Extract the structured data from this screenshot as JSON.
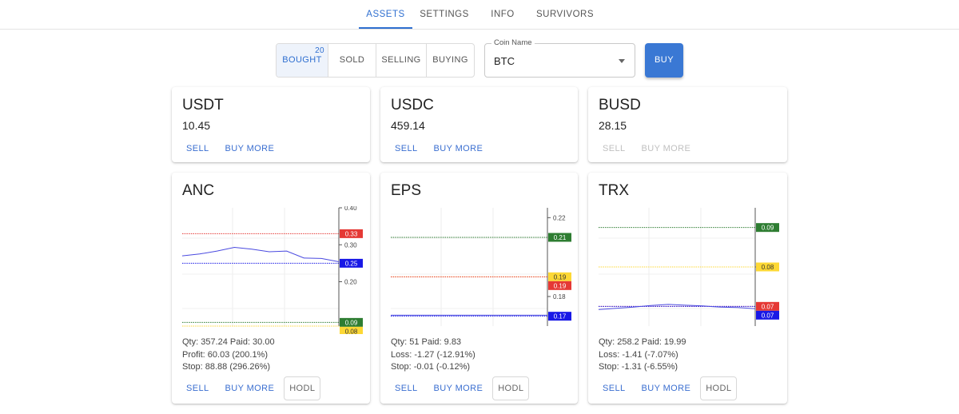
{
  "nav": {
    "tabs": [
      {
        "label": "ASSETS",
        "active": true
      },
      {
        "label": "SETTINGS",
        "active": false
      },
      {
        "label": "INFO",
        "active": false
      },
      {
        "label": "SURVIVORS",
        "active": false
      }
    ]
  },
  "filter": {
    "segments": [
      {
        "label": "BOUGHT",
        "badge": "20",
        "active": true
      },
      {
        "label": "SOLD",
        "active": false
      },
      {
        "label": "SELLING",
        "active": false
      },
      {
        "label": "BUYING",
        "active": false
      }
    ],
    "coin_label": "Coin Name",
    "coin_value": "BTC",
    "buy_label": "BUY"
  },
  "cards": {
    "usdt": {
      "title": "USDT",
      "value": "10.45",
      "sell": "SELL",
      "buy_more": "BUY MORE"
    },
    "usdc": {
      "title": "USDC",
      "value": "459.14",
      "sell": "SELL",
      "buy_more": "BUY MORE"
    },
    "busd": {
      "title": "BUSD",
      "value": "28.15",
      "sell": "SELL",
      "buy_more": "BUY MORE"
    },
    "anc": {
      "title": "ANC",
      "qty_line": "Qty: 357.24 Paid: 30.00",
      "pl_line": "Profit: 60.03 (200.1%)",
      "stop_line": "Stop: 88.88 (296.26%)",
      "sell": "SELL",
      "buy_more": "BUY MORE",
      "hodl": "HODL"
    },
    "eps": {
      "title": "EPS",
      "qty_line": "Qty: 51 Paid: 9.83",
      "pl_line": "Loss: -1.27 (-12.91%)",
      "stop_line": "Stop: -0.01 (-0.12%)",
      "sell": "SELL",
      "buy_more": "BUY MORE",
      "hodl": "HODL"
    },
    "trx": {
      "title": "TRX",
      "qty_line": "Qty: 258.2 Paid: 19.99",
      "pl_line": "Loss: -1.41 (-7.07%)",
      "stop_line": "Stop: -1.31 (-6.55%)",
      "sell": "SELL",
      "buy_more": "BUY MORE",
      "hodl": "HODL"
    }
  },
  "chart_data": [
    {
      "type": "line",
      "title": "ANC",
      "ylim": [
        0.08,
        0.4
      ],
      "ticks": [
        {
          "v": 0.4,
          "label": "0.40"
        },
        {
          "v": 0.3,
          "label": "0.30"
        },
        {
          "v": 0.2,
          "label": "0.20"
        }
      ],
      "series": [
        {
          "values": [
            0.27,
            0.275,
            0.283,
            0.293,
            0.288,
            0.281,
            0.283,
            0.264,
            0.263,
            0.254
          ]
        }
      ],
      "levels": [
        {
          "value": 0.33,
          "label": "0.33",
          "color": "#e53935",
          "text_color": "#ffffff"
        },
        {
          "value": 0.25,
          "label": "0.25",
          "color": "#1919e6",
          "text_color": "#ffffff"
        },
        {
          "value": 0.09,
          "label": "0.09",
          "color": "#2e7d32",
          "text_color": "#ffffff"
        },
        {
          "value": 0.08,
          "label": "0.08",
          "color": "#fdd835",
          "text_color": "#333333"
        }
      ]
    },
    {
      "type": "line",
      "title": "EPS",
      "ylim": [
        0.165,
        0.225
      ],
      "ticks": [
        {
          "v": 0.22,
          "label": "0.22"
        },
        {
          "v": 0.18,
          "label": "0.18"
        }
      ],
      "series": [
        {
          "values": [
            0.1705,
            0.1705,
            0.1705,
            0.1705,
            0.1705,
            0.1705,
            0.1705,
            0.1705,
            0.1705,
            0.1705
          ]
        }
      ],
      "levels": [
        {
          "value": 0.21,
          "label": "0.21",
          "color": "#2e7d32",
          "text_color": "#ffffff"
        },
        {
          "value": 0.19,
          "label": "0.19",
          "color": "#fdd835",
          "text_color": "#333333"
        },
        {
          "value": 0.19,
          "label": "0.19",
          "color": "#e53935",
          "text_color": "#ffffff"
        },
        {
          "value": 0.17,
          "label": "0.17",
          "color": "#1919e6",
          "text_color": "#ffffff"
        }
      ]
    },
    {
      "type": "line",
      "title": "TRX",
      "ylim": [
        0.065,
        0.095
      ],
      "ticks": [
        {
          "v": 0.08,
          "label": "0.08"
        }
      ],
      "series": [
        {
          "values": [
            0.0692,
            0.0695,
            0.0698,
            0.0702,
            0.0705,
            0.0703,
            0.0701,
            0.0698,
            0.0697,
            0.0694
          ]
        }
      ],
      "levels": [
        {
          "value": 0.09,
          "label": "0.09",
          "color": "#2e7d32",
          "text_color": "#ffffff"
        },
        {
          "value": 0.08,
          "label": "0.08",
          "color": "#fdd835",
          "text_color": "#333333"
        },
        {
          "value": 0.07,
          "label": "0.07",
          "color": "#e53935",
          "text_color": "#ffffff"
        },
        {
          "value": 0.07,
          "label": "0.07",
          "color": "#1919e6",
          "text_color": "#ffffff"
        }
      ]
    }
  ]
}
